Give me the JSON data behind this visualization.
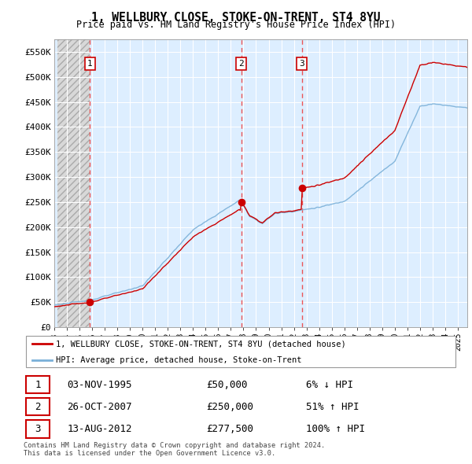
{
  "title": "1, WELLBURY CLOSE, STOKE-ON-TRENT, ST4 8YU",
  "subtitle": "Price paid vs. HM Land Registry's House Price Index (HPI)",
  "property_label": "1, WELLBURY CLOSE, STOKE-ON-TRENT, ST4 8YU (detached house)",
  "hpi_label": "HPI: Average price, detached house, Stoke-on-Trent",
  "property_color": "#cc0000",
  "hpi_color": "#7ab0d8",
  "plot_bg": "#ddeeff",
  "hatch_bg": "#e8e8e8",
  "ylim": [
    0,
    575000
  ],
  "yticks": [
    0,
    50000,
    100000,
    150000,
    200000,
    250000,
    300000,
    350000,
    400000,
    450000,
    500000,
    550000
  ],
  "xlim_start": 1993.25,
  "xlim_end": 2025.75,
  "transactions": [
    {
      "num": 1,
      "date": "03-NOV-1995",
      "price": 50000,
      "pct": "6%",
      "dir": "↓",
      "x": 1995.83
    },
    {
      "num": 2,
      "date": "26-OCT-2007",
      "price": 250000,
      "pct": "51%",
      "dir": "↑",
      "x": 2007.82
    },
    {
      "num": 3,
      "date": "13-AUG-2012",
      "price": 277500,
      "pct": "100%",
      "dir": "↑",
      "x": 2012.62
    }
  ],
  "footer": "Contains HM Land Registry data © Crown copyright and database right 2024.\nThis data is licensed under the Open Government Licence v3.0.",
  "xtick_years": [
    1993,
    1994,
    1995,
    1996,
    1997,
    1998,
    1999,
    2000,
    2001,
    2002,
    2003,
    2004,
    2005,
    2006,
    2007,
    2008,
    2009,
    2010,
    2011,
    2012,
    2013,
    2014,
    2015,
    2016,
    2017,
    2018,
    2019,
    2020,
    2021,
    2022,
    2023,
    2024,
    2025
  ]
}
